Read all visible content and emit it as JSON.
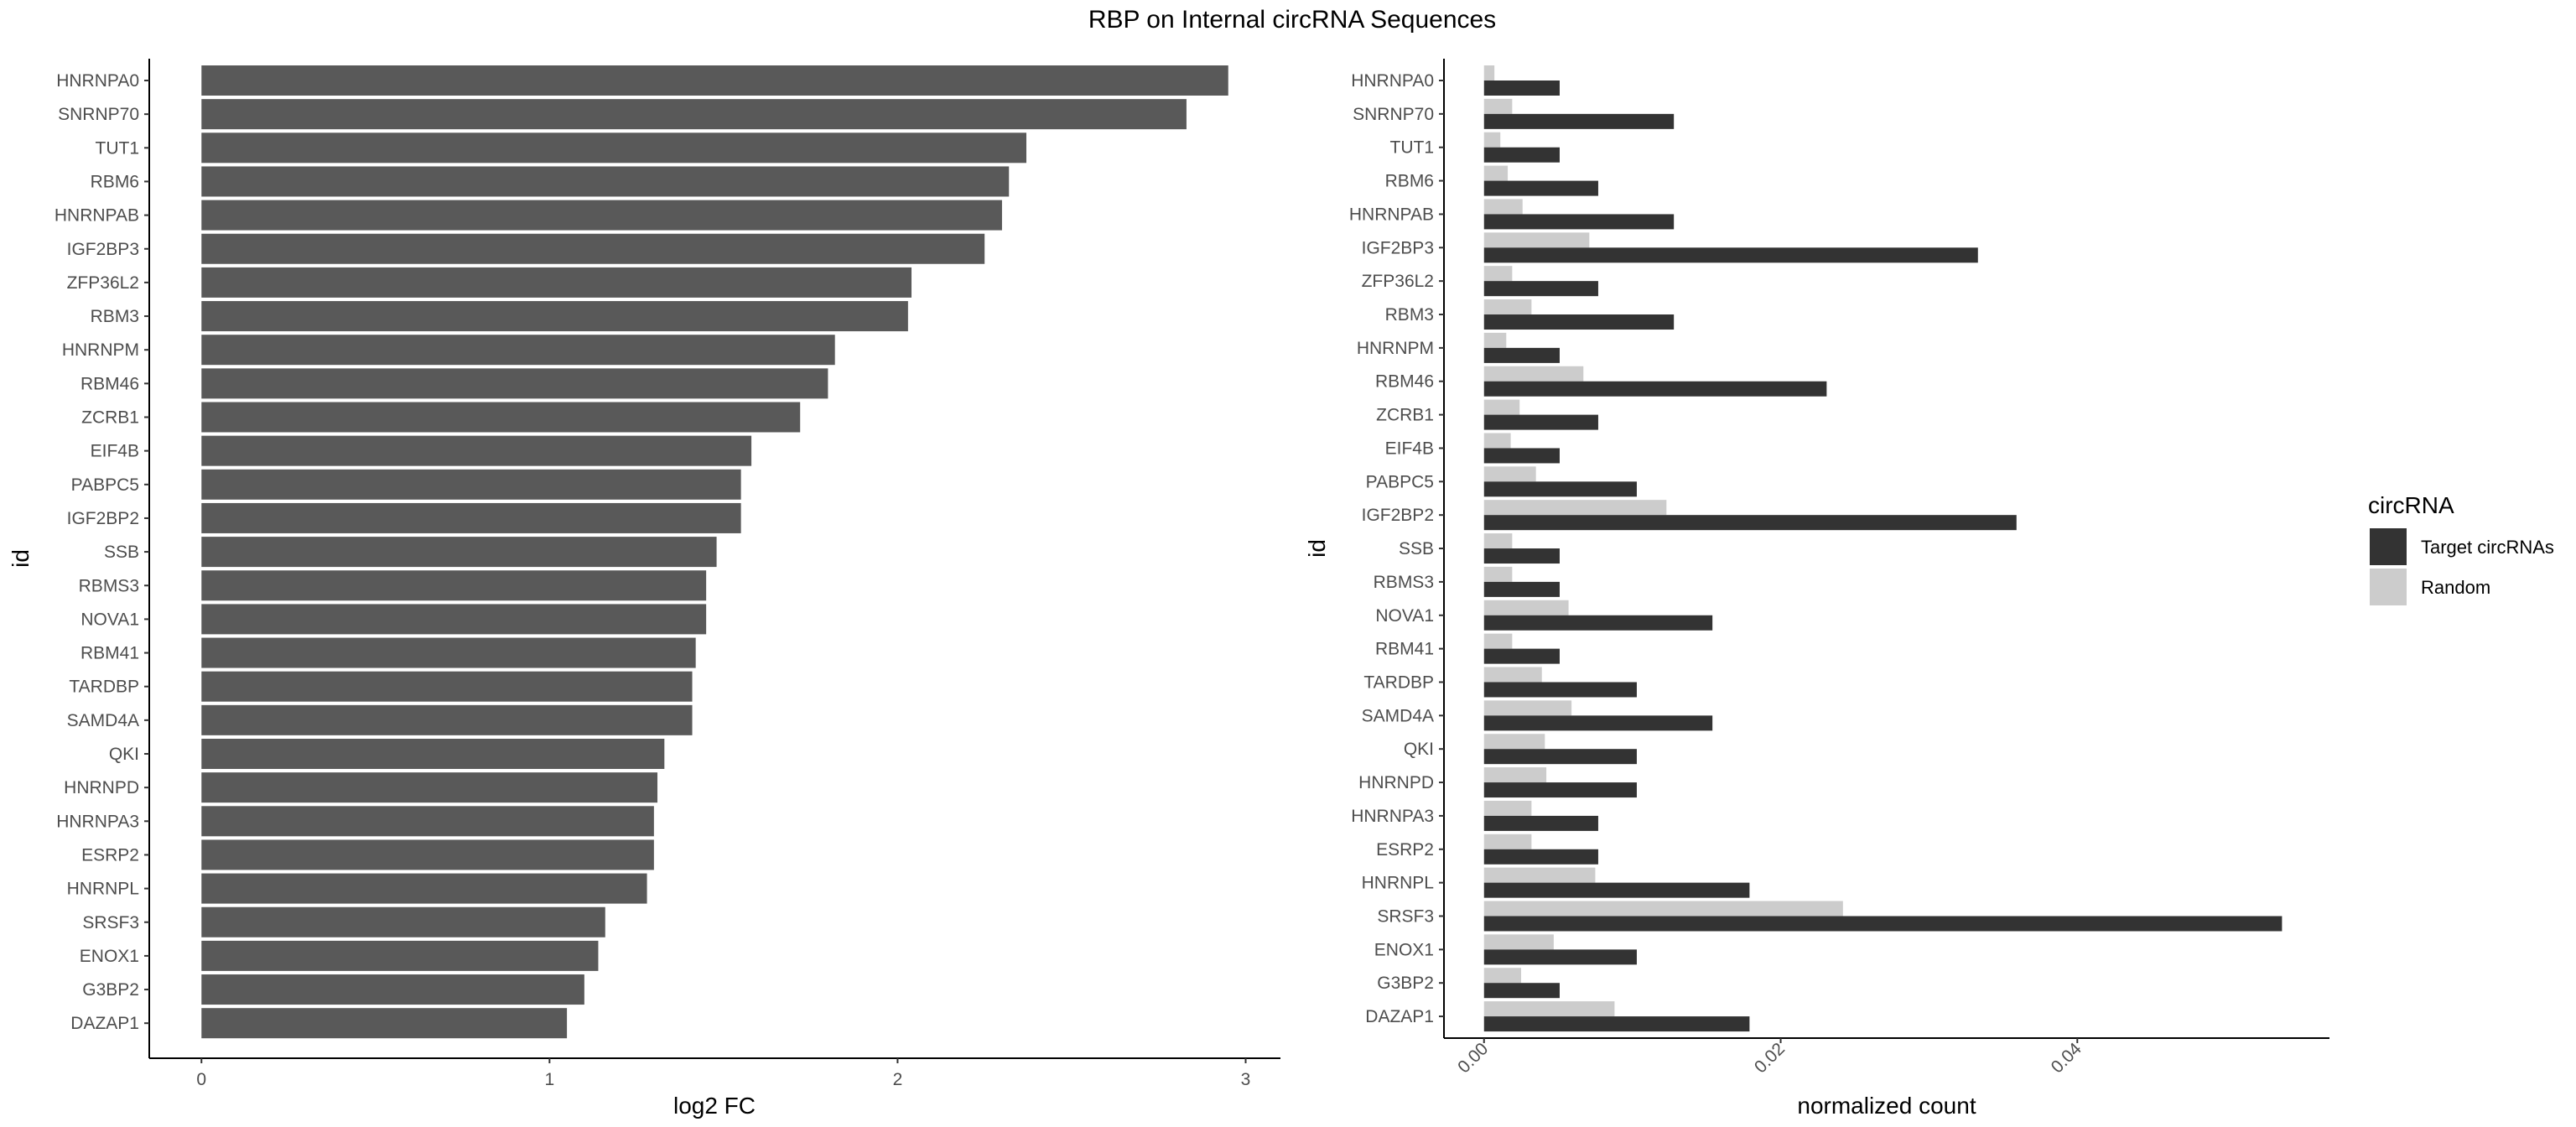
{
  "chart_data": {
    "title": "RBP on Internal circRNA Sequences",
    "panels": [
      {
        "type": "bar",
        "orientation": "horizontal",
        "xlabel": "log2 FC",
        "ylabel": "id",
        "xlim": [
          -0.15,
          3.1
        ],
        "xticks": [
          0,
          1,
          2,
          3
        ],
        "grid": false,
        "bar_color": "#595959",
        "categories": [
          "HNRNPA0",
          "SNRNP70",
          "TUT1",
          "RBM6",
          "HNRNPAB",
          "IGF2BP3",
          "ZFP36L2",
          "RBM3",
          "HNRNPM",
          "RBM46",
          "ZCRB1",
          "EIF4B",
          "PABPC5",
          "IGF2BP2",
          "SSB",
          "RBMS3",
          "NOVA1",
          "RBM41",
          "TARDBP",
          "SAMD4A",
          "QKI",
          "HNRNPD",
          "HNRNPA3",
          "ESRP2",
          "HNRNPL",
          "SRSF3",
          "ENOX1",
          "G3BP2",
          "DAZAP1"
        ],
        "values": [
          2.95,
          2.83,
          2.37,
          2.32,
          2.3,
          2.25,
          2.04,
          2.03,
          1.82,
          1.8,
          1.72,
          1.58,
          1.55,
          1.55,
          1.48,
          1.45,
          1.45,
          1.42,
          1.41,
          1.41,
          1.33,
          1.31,
          1.3,
          1.3,
          1.28,
          1.16,
          1.14,
          1.1,
          1.05
        ]
      },
      {
        "type": "bar",
        "orientation": "horizontal",
        "grouped": true,
        "xlabel": "normalized count",
        "ylabel": "id",
        "xlim": [
          -0.0027,
          0.057
        ],
        "xticks": [
          "0.00",
          "0.02",
          "0.04"
        ],
        "grid": false,
        "categories": [
          "HNRNPA0",
          "SNRNP70",
          "TUT1",
          "RBM6",
          "HNRNPAB",
          "IGF2BP3",
          "ZFP36L2",
          "RBM3",
          "HNRNPM",
          "RBM46",
          "ZCRB1",
          "EIF4B",
          "PABPC5",
          "IGF2BP2",
          "SSB",
          "RBMS3",
          "NOVA1",
          "RBM41",
          "TARDBP",
          "SAMD4A",
          "QKI",
          "HNRNPD",
          "HNRNPA3",
          "ESRP2",
          "HNRNPL",
          "SRSF3",
          "ENOX1",
          "G3BP2",
          "DAZAP1"
        ],
        "series": [
          {
            "name": "Target circRNAs",
            "color": "#333333",
            "values": [
              0.0051,
              0.0128,
              0.0051,
              0.0077,
              0.0128,
              0.0333,
              0.0077,
              0.0128,
              0.0051,
              0.0231,
              0.0077,
              0.0051,
              0.0103,
              0.0359,
              0.0051,
              0.0051,
              0.0154,
              0.0051,
              0.0103,
              0.0154,
              0.0103,
              0.0103,
              0.0077,
              0.0077,
              0.0179,
              0.0538,
              0.0103,
              0.0051,
              0.0179
            ]
          },
          {
            "name": "Random",
            "color": "#cccccc",
            "values": [
              0.0007,
              0.0019,
              0.0011,
              0.0016,
              0.0026,
              0.0071,
              0.0019,
              0.0032,
              0.0015,
              0.0067,
              0.0024,
              0.0018,
              0.0035,
              0.0123,
              0.0019,
              0.0019,
              0.0057,
              0.0019,
              0.0039,
              0.0059,
              0.0041,
              0.0042,
              0.0032,
              0.0032,
              0.0075,
              0.0242,
              0.0047,
              0.0025,
              0.0088
            ]
          }
        ]
      }
    ],
    "legend": {
      "title": "circRNA",
      "position": "right",
      "entries": [
        {
          "label": "Target circRNAs",
          "color": "#333333"
        },
        {
          "label": "Random",
          "color": "#cccccc"
        }
      ]
    }
  }
}
